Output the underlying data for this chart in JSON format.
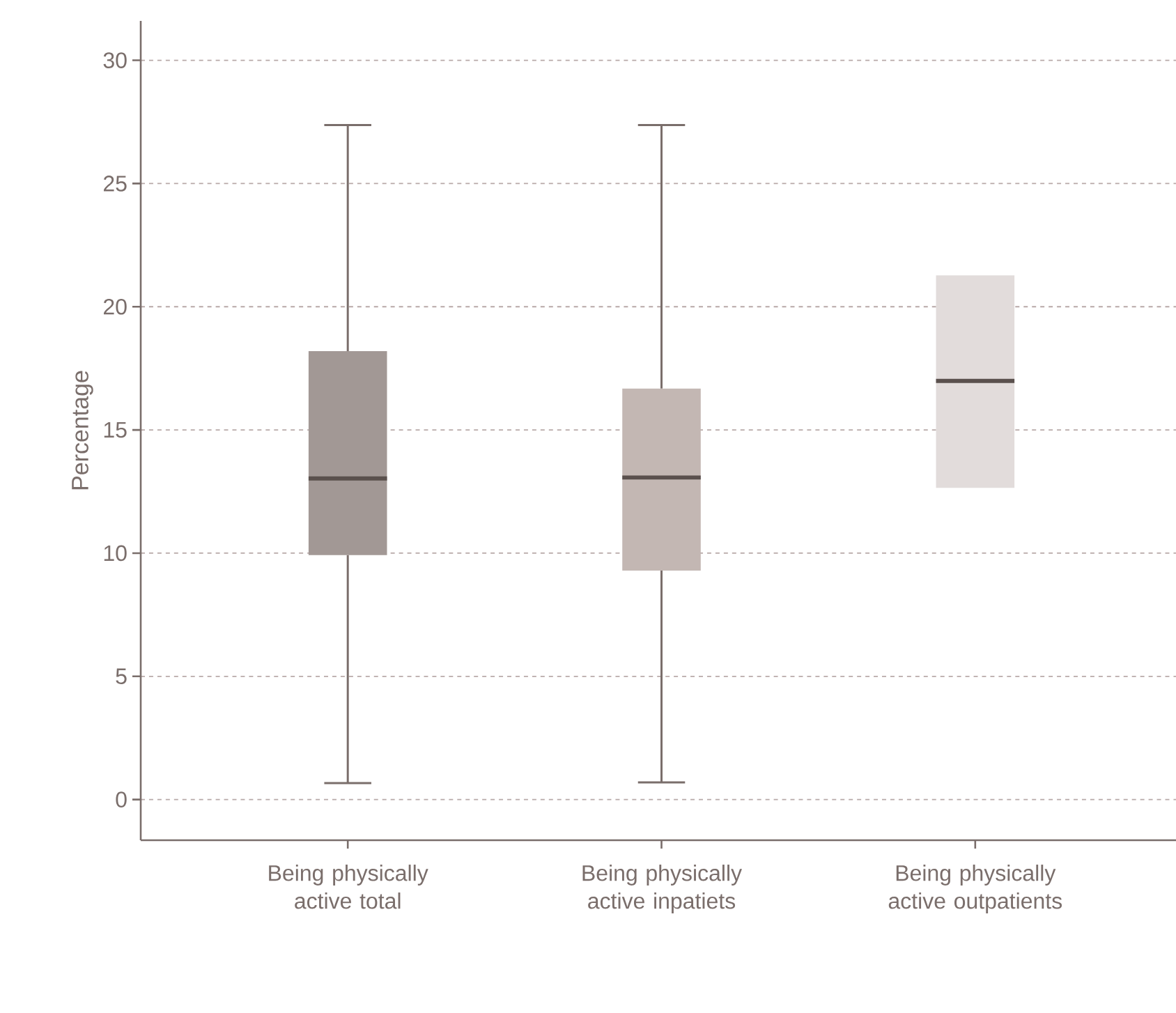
{
  "chart_data": {
    "type": "box",
    "ylabel": "Percentage",
    "categories": [
      "Being physically active total",
      "Being physically active inpatiets",
      "Being physically active outpatients"
    ],
    "boxes": [
      {
        "low": 0.67,
        "q1": 9.92,
        "median": 13.03,
        "q3": 18.2,
        "high": 27.37
      },
      {
        "low": 0.7,
        "q1": 9.29,
        "median": 13.07,
        "q3": 16.68,
        "high": 27.37
      },
      {
        "low": 12.65,
        "q1": 12.65,
        "median": 16.99,
        "q3": 21.27,
        "high": 21.27
      }
    ],
    "colors": [
      "#a29895",
      "#c3b7b3",
      "#e2dcdb"
    ],
    "ylim": [
      -1.65,
      31.6
    ],
    "yticks": [
      0,
      5,
      10,
      15,
      20,
      25,
      30
    ],
    "grid": "y"
  }
}
